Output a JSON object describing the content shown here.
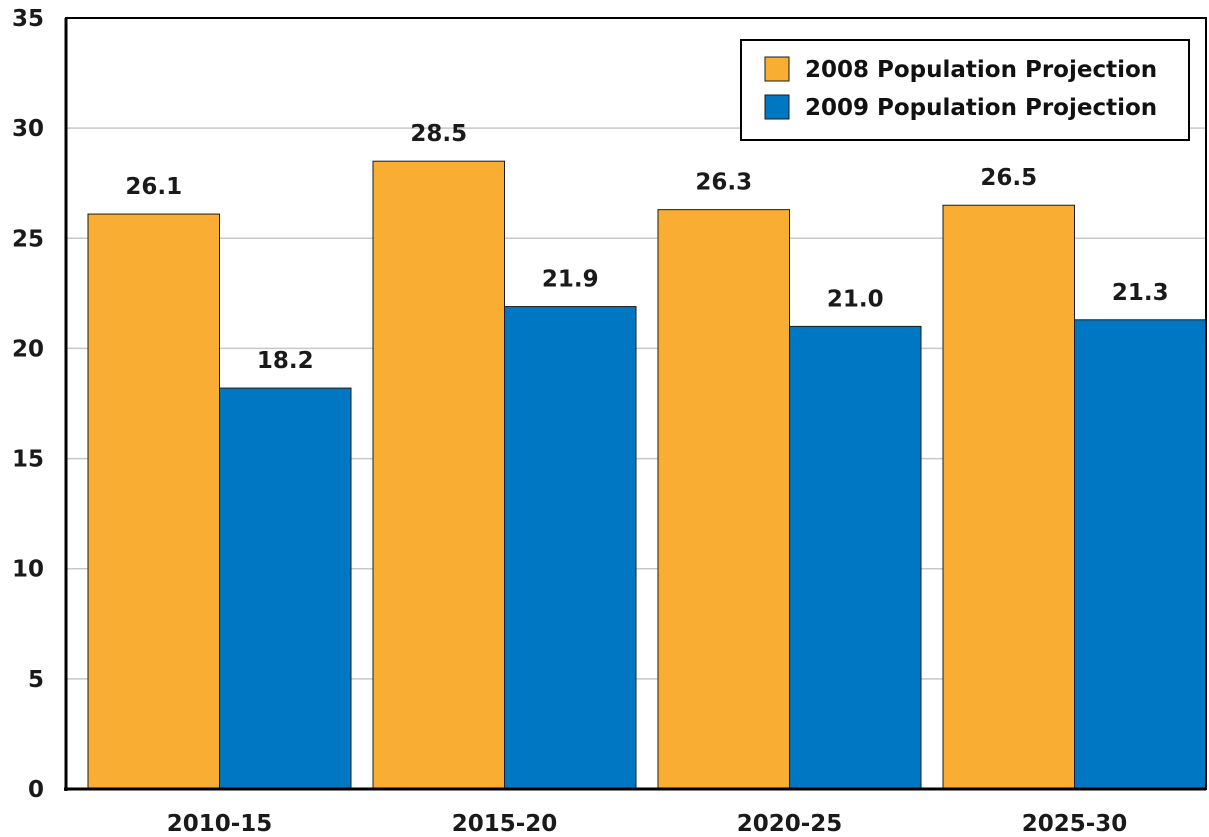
{
  "chart_data": {
    "type": "bar",
    "title": "",
    "xlabel": "",
    "ylabel": "",
    "categories": [
      "2010-15",
      "2015-20",
      "2020-25",
      "2025-30"
    ],
    "series": [
      {
        "name": "2008 Population Projection",
        "values": [
          26.1,
          28.5,
          26.3,
          26.5
        ],
        "labels": [
          "26.1",
          "28.5",
          "26.3",
          "26.5"
        ],
        "color": "#F9AE33"
      },
      {
        "name": "2009 Population Projection",
        "values": [
          18.2,
          21.9,
          21.0,
          21.3
        ],
        "labels": [
          "18.2",
          "21.9",
          "21.0",
          "21.3"
        ],
        "color": "#0077C2"
      }
    ],
    "ylim": [
      0,
      35
    ],
    "yticks": [
      0,
      5,
      10,
      15,
      20,
      25,
      30,
      35
    ],
    "ytick_labels": [
      "0",
      "5",
      "10",
      "15",
      "20",
      "25",
      "30",
      "35"
    ],
    "grid": true,
    "legend_position": "top-right"
  }
}
